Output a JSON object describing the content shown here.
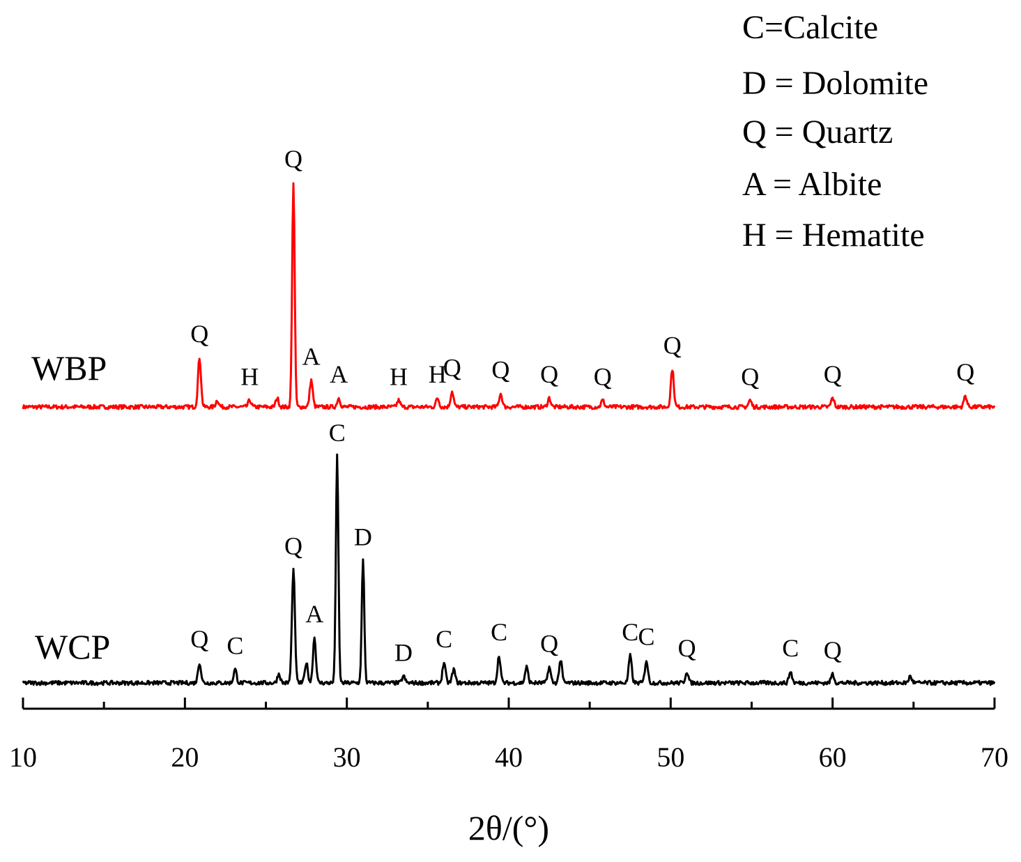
{
  "chart_data": {
    "type": "line",
    "title": "",
    "xlabel": "2θ/(°)",
    "ylabel": "",
    "xlim": [
      10,
      70
    ],
    "xticks": [
      "10",
      "20",
      "30",
      "40",
      "50",
      "60",
      "70"
    ],
    "grid": false,
    "legend": {
      "placement": "top-right",
      "entries": [
        "C=Calcite",
        "D = Dolomite",
        "Q = Quartz",
        "A = Albite",
        "H = Hematite"
      ]
    },
    "series": [
      {
        "name": "WBP",
        "color": "#ff0000",
        "peaks": [
          {
            "x": 20.9,
            "y": 0.22,
            "label": "Q"
          },
          {
            "x": 22.0,
            "y": 0.03,
            "label": ""
          },
          {
            "x": 24.0,
            "y": 0.03,
            "label": "H"
          },
          {
            "x": 25.7,
            "y": 0.04,
            "label": ""
          },
          {
            "x": 26.7,
            "y": 1.0,
            "label": "Q"
          },
          {
            "x": 27.8,
            "y": 0.12,
            "label": "A"
          },
          {
            "x": 29.5,
            "y": 0.04,
            "label": "A"
          },
          {
            "x": 33.2,
            "y": 0.03,
            "label": "H"
          },
          {
            "x": 35.6,
            "y": 0.04,
            "label": "H"
          },
          {
            "x": 36.5,
            "y": 0.07,
            "label": "Q"
          },
          {
            "x": 39.5,
            "y": 0.06,
            "label": "Q"
          },
          {
            "x": 42.5,
            "y": 0.04,
            "label": "Q"
          },
          {
            "x": 45.8,
            "y": 0.03,
            "label": "Q"
          },
          {
            "x": 50.1,
            "y": 0.17,
            "label": "Q"
          },
          {
            "x": 54.9,
            "y": 0.03,
            "label": "Q"
          },
          {
            "x": 60.0,
            "y": 0.04,
            "label": "Q"
          },
          {
            "x": 68.2,
            "y": 0.05,
            "label": "Q"
          }
        ]
      },
      {
        "name": "WCP",
        "color": "#000000",
        "peaks": [
          {
            "x": 20.9,
            "y": 0.09,
            "label": "Q"
          },
          {
            "x": 23.1,
            "y": 0.06,
            "label": "C"
          },
          {
            "x": 25.8,
            "y": 0.04,
            "label": ""
          },
          {
            "x": 26.7,
            "y": 0.5,
            "label": "Q"
          },
          {
            "x": 27.5,
            "y": 0.09,
            "label": ""
          },
          {
            "x": 28.0,
            "y": 0.2,
            "label": "A"
          },
          {
            "x": 29.4,
            "y": 1.0,
            "label": "C"
          },
          {
            "x": 31.0,
            "y": 0.54,
            "label": "D"
          },
          {
            "x": 33.5,
            "y": 0.03,
            "label": "D"
          },
          {
            "x": 36.0,
            "y": 0.09,
            "label": "C"
          },
          {
            "x": 36.6,
            "y": 0.06,
            "label": ""
          },
          {
            "x": 39.4,
            "y": 0.12,
            "label": "C"
          },
          {
            "x": 41.1,
            "y": 0.07,
            "label": ""
          },
          {
            "x": 42.5,
            "y": 0.07,
            "label": "Q"
          },
          {
            "x": 43.2,
            "y": 0.1,
            "label": ""
          },
          {
            "x": 47.5,
            "y": 0.12,
            "label": "C"
          },
          {
            "x": 48.5,
            "y": 0.1,
            "label": "C"
          },
          {
            "x": 51.0,
            "y": 0.05,
            "label": "Q"
          },
          {
            "x": 57.4,
            "y": 0.05,
            "label": "C"
          },
          {
            "x": 60.0,
            "y": 0.04,
            "label": "Q"
          },
          {
            "x": 64.8,
            "y": 0.03,
            "label": ""
          }
        ]
      }
    ]
  }
}
